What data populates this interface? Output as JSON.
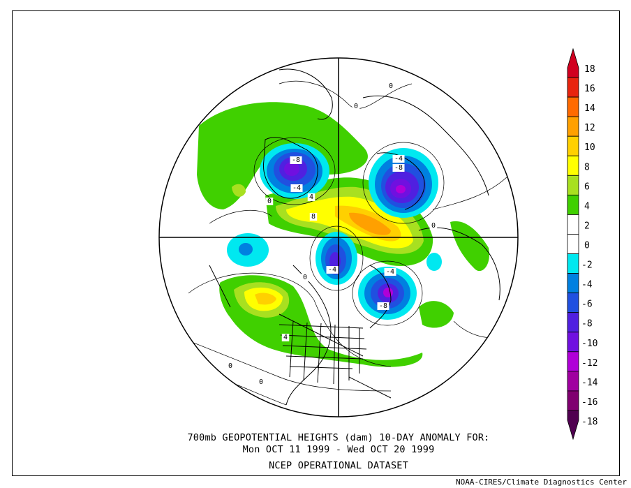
{
  "title_line1": "700mb GEOPOTENTIAL HEIGHTS (dam)   10-DAY ANOMALY FOR:",
  "title_line2": "Mon OCT 11 1999 - Wed OCT 20 1999",
  "dataset": "NCEP OPERATIONAL DATASET",
  "credit": "NOAA-CIRES/Climate Diagnostics Center",
  "colorbar": {
    "ticks": [
      "18",
      "16",
      "14",
      "12",
      "10",
      "8",
      "6",
      "4",
      "2",
      "0",
      "-2",
      "-4",
      "-6",
      "-8",
      "-10",
      "-12",
      "-14",
      "-16",
      "-18"
    ],
    "bins": [
      {
        "color": "#d1001f"
      },
      {
        "color": "#e8240e"
      },
      {
        "color": "#ff6a00"
      },
      {
        "color": "#ffa000"
      },
      {
        "color": "#ffd000"
      },
      {
        "color": "#ffff00"
      },
      {
        "color": "#a8e020"
      },
      {
        "color": "#40d000"
      },
      {
        "color": "#ffffff"
      },
      {
        "color": "#ffffff"
      },
      {
        "color": "#00e8f0"
      },
      {
        "color": "#0080e0"
      },
      {
        "color": "#2050e0"
      },
      {
        "color": "#5020e0"
      },
      {
        "color": "#7010e0"
      },
      {
        "color": "#b000d8"
      },
      {
        "color": "#a000a0"
      },
      {
        "color": "#800070"
      },
      {
        "color": "#500050"
      }
    ]
  },
  "contour_labels": [
    "-8",
    "-4",
    "-8",
    "-4",
    "8",
    "-4",
    "-8",
    "-4",
    "4",
    "4",
    "0",
    "0",
    "0",
    "0",
    "0",
    "0",
    "0"
  ]
}
